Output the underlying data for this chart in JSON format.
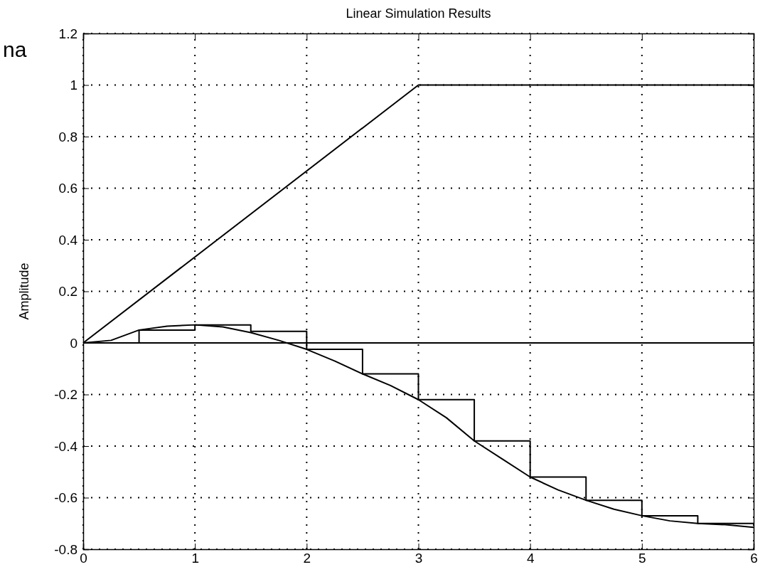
{
  "chart_data": {
    "type": "line",
    "title": "Linear Simulation Results",
    "ylabel": "Amplitude",
    "annotations": [
      "na"
    ],
    "xlim": [
      0,
      6
    ],
    "xticks": [
      0,
      1,
      2,
      3,
      4,
      5,
      6
    ],
    "ylim": [
      -0.8,
      1.2
    ],
    "yticks": [
      -0.8,
      -0.6,
      -0.4,
      -0.2,
      0,
      0.2,
      0.4,
      0.6,
      0.8,
      1,
      1.2
    ],
    "grid": true,
    "line_style": "solid",
    "ref_lines": [
      {
        "axis": "y",
        "value": 0,
        "color": "#000000"
      }
    ],
    "series": [
      {
        "type": "line",
        "color": "#000000",
        "x": [
          0,
          3,
          6
        ],
        "values": [
          0,
          1,
          1
        ]
      },
      {
        "type": "step",
        "color": "#000000",
        "x": [
          0,
          0.5,
          1,
          1.5,
          2,
          2.5,
          3,
          3.5,
          4,
          4.5,
          5,
          5.5,
          6
        ],
        "values": [
          0,
          0.05,
          0.07,
          0.045,
          -0.025,
          -0.12,
          -0.22,
          -0.38,
          -0.52,
          -0.61,
          -0.67,
          -0.7,
          -0.7
        ]
      },
      {
        "type": "line",
        "color": "#000000",
        "x": [
          0,
          0.25,
          0.5,
          0.75,
          1,
          1.25,
          1.5,
          1.75,
          2,
          2.25,
          2.5,
          2.75,
          3,
          3.25,
          3.5,
          3.75,
          4,
          4.25,
          4.5,
          4.75,
          5,
          5.25,
          5.5,
          5.75,
          6
        ],
        "values": [
          0,
          0.01,
          0.05,
          0.065,
          0.07,
          0.062,
          0.04,
          0.01,
          -0.025,
          -0.07,
          -0.12,
          -0.165,
          -0.22,
          -0.29,
          -0.38,
          -0.45,
          -0.52,
          -0.57,
          -0.61,
          -0.645,
          -0.67,
          -0.69,
          -0.7,
          -0.705,
          -0.715
        ]
      }
    ]
  }
}
